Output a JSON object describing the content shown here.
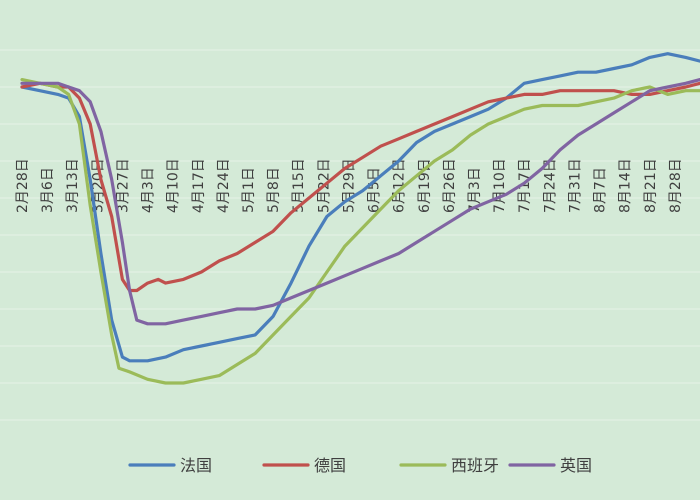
{
  "chart_data": {
    "type": "line",
    "title": "",
    "xlabel": "",
    "ylabel": "",
    "grid": true,
    "legend": "bottom",
    "x_ticks": [
      "2月28日",
      "3月6日",
      "3月13日",
      "3月20日",
      "3月27日",
      "4月3日",
      "4月10日",
      "4月17日",
      "4月24日",
      "5月1日",
      "5月8日",
      "5月15日",
      "5月22日",
      "5月29日",
      "6月5日",
      "6月12日",
      "6月19日",
      "6月26日",
      "7月3日",
      "7月10日",
      "7月17日",
      "7月24日",
      "7月31日",
      "8月7日",
      "8月14日",
      "8月21日",
      "8月28日"
    ],
    "x_range_days": [
      0,
      189
    ],
    "y_range": [
      -90,
      10
    ],
    "series": [
      {
        "name": "法国",
        "color": "#4a7ebb",
        "points": [
          [
            0,
            0
          ],
          [
            5,
            -1
          ],
          [
            10,
            -2
          ],
          [
            13,
            -3
          ],
          [
            16,
            -8
          ],
          [
            19,
            -25
          ],
          [
            22,
            -45
          ],
          [
            25,
            -63
          ],
          [
            28,
            -73
          ],
          [
            30,
            -74
          ],
          [
            35,
            -74
          ],
          [
            40,
            -73
          ],
          [
            45,
            -71
          ],
          [
            50,
            -70
          ],
          [
            55,
            -69
          ],
          [
            60,
            -68
          ],
          [
            65,
            -67
          ],
          [
            70,
            -62
          ],
          [
            75,
            -53
          ],
          [
            80,
            -43
          ],
          [
            85,
            -35
          ],
          [
            90,
            -31
          ],
          [
            95,
            -28
          ],
          [
            100,
            -24
          ],
          [
            105,
            -20
          ],
          [
            110,
            -15
          ],
          [
            115,
            -12
          ],
          [
            120,
            -10
          ],
          [
            125,
            -8
          ],
          [
            130,
            -6
          ],
          [
            135,
            -3
          ],
          [
            140,
            1
          ],
          [
            145,
            2
          ],
          [
            150,
            3
          ],
          [
            155,
            4
          ],
          [
            160,
            4
          ],
          [
            165,
            5
          ],
          [
            170,
            6
          ],
          [
            175,
            8
          ],
          [
            180,
            9
          ],
          [
            185,
            8
          ],
          [
            189,
            7
          ]
        ]
      },
      {
        "name": "德国",
        "color": "#c0504d",
        "points": [
          [
            0,
            0
          ],
          [
            5,
            1
          ],
          [
            10,
            0
          ],
          [
            13,
            0
          ],
          [
            16,
            -3
          ],
          [
            19,
            -10
          ],
          [
            22,
            -25
          ],
          [
            25,
            -35
          ],
          [
            28,
            -52
          ],
          [
            30,
            -55
          ],
          [
            32,
            -55
          ],
          [
            35,
            -53
          ],
          [
            38,
            -52
          ],
          [
            40,
            -53
          ],
          [
            45,
            -52
          ],
          [
            50,
            -50
          ],
          [
            55,
            -47
          ],
          [
            60,
            -45
          ],
          [
            65,
            -42
          ],
          [
            70,
            -39
          ],
          [
            75,
            -34
          ],
          [
            80,
            -30
          ],
          [
            85,
            -26
          ],
          [
            90,
            -22
          ],
          [
            95,
            -19
          ],
          [
            100,
            -16
          ],
          [
            105,
            -14
          ],
          [
            110,
            -12
          ],
          [
            115,
            -10
          ],
          [
            120,
            -8
          ],
          [
            125,
            -6
          ],
          [
            130,
            -4
          ],
          [
            135,
            -3
          ],
          [
            140,
            -2
          ],
          [
            145,
            -2
          ],
          [
            150,
            -1
          ],
          [
            155,
            -1
          ],
          [
            160,
            -1
          ],
          [
            165,
            -1
          ],
          [
            170,
            -2
          ],
          [
            175,
            -2
          ],
          [
            180,
            -1
          ],
          [
            185,
            0
          ],
          [
            189,
            1
          ]
        ]
      },
      {
        "name": "西班牙",
        "color": "#9bbb59",
        "points": [
          [
            0,
            2
          ],
          [
            5,
            1
          ],
          [
            10,
            0
          ],
          [
            13,
            -2
          ],
          [
            16,
            -10
          ],
          [
            19,
            -32
          ],
          [
            22,
            -50
          ],
          [
            25,
            -67
          ],
          [
            27,
            -76
          ],
          [
            30,
            -77
          ],
          [
            35,
            -79
          ],
          [
            40,
            -80
          ],
          [
            45,
            -80
          ],
          [
            50,
            -79
          ],
          [
            55,
            -78
          ],
          [
            60,
            -75
          ],
          [
            65,
            -72
          ],
          [
            70,
            -67
          ],
          [
            75,
            -62
          ],
          [
            80,
            -57
          ],
          [
            85,
            -50
          ],
          [
            90,
            -43
          ],
          [
            95,
            -38
          ],
          [
            100,
            -33
          ],
          [
            105,
            -28
          ],
          [
            110,
            -24
          ],
          [
            115,
            -20
          ],
          [
            120,
            -17
          ],
          [
            125,
            -13
          ],
          [
            130,
            -10
          ],
          [
            135,
            -8
          ],
          [
            140,
            -6
          ],
          [
            145,
            -5
          ],
          [
            150,
            -5
          ],
          [
            155,
            -5
          ],
          [
            160,
            -4
          ],
          [
            165,
            -3
          ],
          [
            170,
            -1
          ],
          [
            175,
            0
          ],
          [
            180,
            -2
          ],
          [
            185,
            -1
          ],
          [
            189,
            -1
          ]
        ]
      },
      {
        "name": "英国",
        "color": "#8064a2",
        "points": [
          [
            0,
            1
          ],
          [
            5,
            1
          ],
          [
            10,
            1
          ],
          [
            13,
            0
          ],
          [
            16,
            -1
          ],
          [
            19,
            -4
          ],
          [
            22,
            -12
          ],
          [
            25,
            -25
          ],
          [
            28,
            -42
          ],
          [
            30,
            -55
          ],
          [
            32,
            -63
          ],
          [
            35,
            -64
          ],
          [
            40,
            -64
          ],
          [
            45,
            -63
          ],
          [
            50,
            -62
          ],
          [
            55,
            -61
          ],
          [
            60,
            -60
          ],
          [
            65,
            -60
          ],
          [
            70,
            -59
          ],
          [
            75,
            -57
          ],
          [
            80,
            -55
          ],
          [
            85,
            -53
          ],
          [
            90,
            -51
          ],
          [
            95,
            -49
          ],
          [
            100,
            -47
          ],
          [
            105,
            -45
          ],
          [
            110,
            -42
          ],
          [
            115,
            -39
          ],
          [
            120,
            -36
          ],
          [
            125,
            -33
          ],
          [
            130,
            -31
          ],
          [
            135,
            -29
          ],
          [
            140,
            -26
          ],
          [
            145,
            -22
          ],
          [
            150,
            -17
          ],
          [
            155,
            -13
          ],
          [
            160,
            -10
          ],
          [
            165,
            -7
          ],
          [
            170,
            -4
          ],
          [
            175,
            -1
          ],
          [
            180,
            0
          ],
          [
            185,
            1
          ],
          [
            189,
            2
          ]
        ]
      }
    ]
  }
}
